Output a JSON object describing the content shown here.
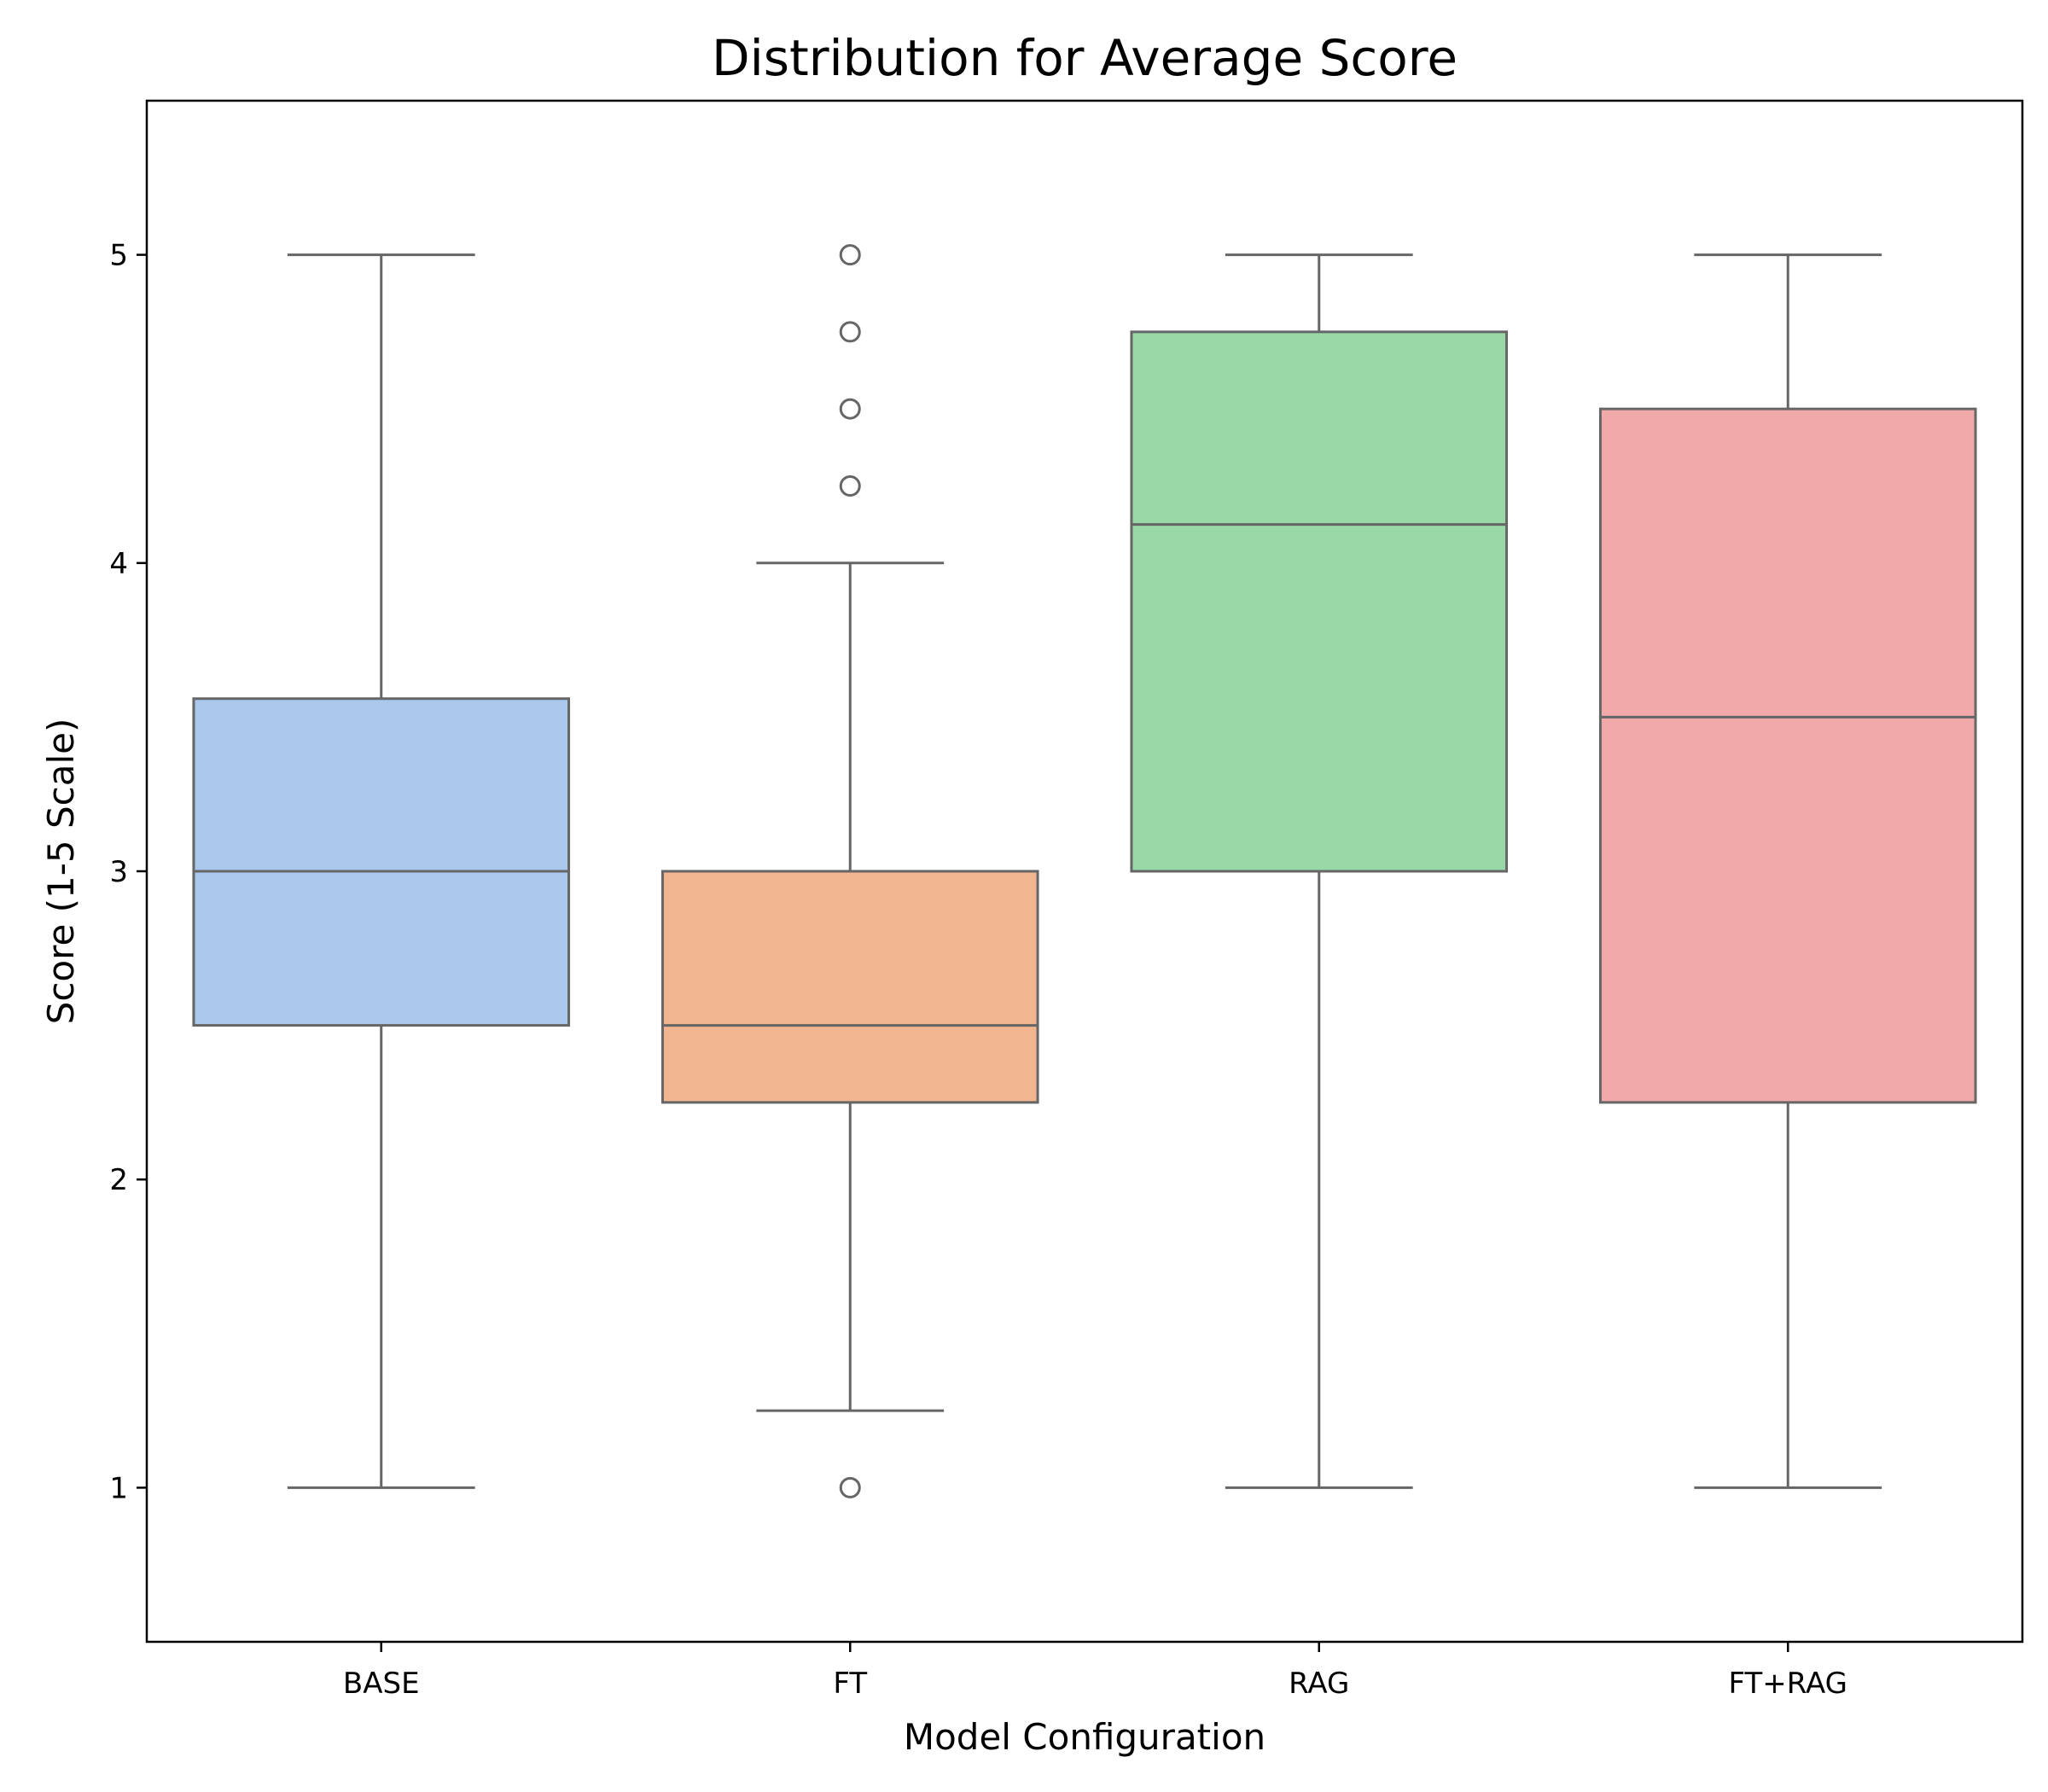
{
  "chart_data": {
    "type": "box",
    "title": "Distribution for Average Score",
    "xlabel": "Model Configuration",
    "ylabel": "Score (1-5 Scale)",
    "ylim": [
      0.5,
      5.5
    ],
    "yticks": [
      "1",
      "2",
      "3",
      "4",
      "5"
    ],
    "grid": false,
    "categories": [
      "BASE",
      "FT",
      "RAG",
      "FT+RAG"
    ],
    "colors": [
      "#a9c8ec",
      "#f1b590",
      "#98d9a7",
      "#f1aaa9"
    ],
    "line_color": "#666666",
    "boxes": [
      {
        "category": "BASE",
        "whisker_low": 1.0,
        "q1": 2.5,
        "median": 3.0,
        "q3": 3.56,
        "whisker_high": 5.0,
        "outliers": []
      },
      {
        "category": "FT",
        "whisker_low": 1.25,
        "q1": 2.25,
        "median": 2.5,
        "q3": 3.0,
        "whisker_high": 4.0,
        "outliers": [
          1.0,
          4.25,
          4.5,
          4.75,
          5.0
        ]
      },
      {
        "category": "RAG",
        "whisker_low": 1.0,
        "q1": 3.0,
        "median": 4.125,
        "q3": 4.75,
        "whisker_high": 5.0,
        "outliers": []
      },
      {
        "category": "FT+RAG",
        "whisker_low": 1.0,
        "q1": 2.25,
        "median": 3.5,
        "q3": 4.5,
        "whisker_high": 5.0,
        "outliers": []
      }
    ]
  }
}
